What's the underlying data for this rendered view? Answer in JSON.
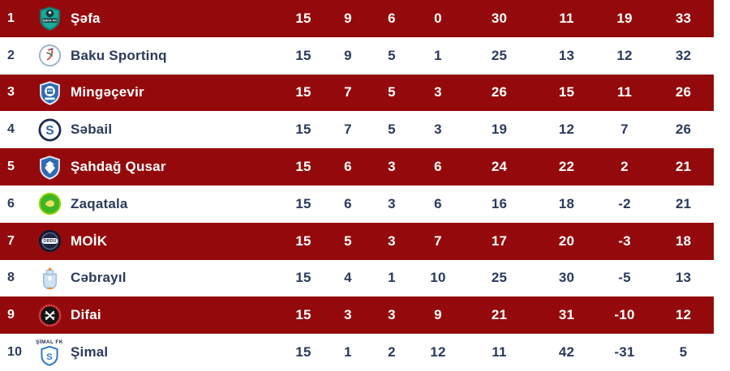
{
  "colors": {
    "row_highlight": "#940a0c",
    "row_default": "#ffffff",
    "text_on_highlight": "#ffffff",
    "text_default": "#2b3a5c"
  },
  "table": {
    "rows": [
      {
        "pos": "1",
        "team": "Şəfa",
        "highlighted": true,
        "stats": [
          "15",
          "9",
          "6",
          "0",
          "30",
          "11",
          "19",
          "33"
        ],
        "logo": {
          "shape": "shield",
          "color": "#1ba99a",
          "border": "#0e7f74",
          "glyph": "ball",
          "glyphColor": "#173f3d",
          "bandColor": "#14413e",
          "bandText": "ŞƏFA FK"
        }
      },
      {
        "pos": "2",
        "team": "Baku Sportinq",
        "highlighted": false,
        "stats": [
          "15",
          "9",
          "5",
          "1",
          "25",
          "13",
          "12",
          "32"
        ],
        "logo": {
          "shape": "circle",
          "color": "#ffffff",
          "border": "#9db4cc",
          "glyph": "figure",
          "glyphColor": "#d04a4a",
          "accent": "#3a7d44"
        }
      },
      {
        "pos": "3",
        "team": "Mingəçevir",
        "highlighted": true,
        "stats": [
          "15",
          "7",
          "5",
          "3",
          "26",
          "15",
          "11",
          "26"
        ],
        "logo": {
          "shape": "shield",
          "color": "#2f6db2",
          "border": "#e4ecf5",
          "glyph": "building",
          "glyphColor": "#ffffff"
        }
      },
      {
        "pos": "4",
        "team": "Səbail",
        "highlighted": false,
        "stats": [
          "15",
          "7",
          "5",
          "3",
          "19",
          "12",
          "7",
          "26"
        ],
        "logo": {
          "shape": "circle",
          "color": "#ffffff",
          "border": "#1d2b4d",
          "ring": 3,
          "glyph": "letter",
          "text": "S",
          "glyphColor": "#2e66a8"
        }
      },
      {
        "pos": "5",
        "team": "Şahdağ Qusar",
        "highlighted": true,
        "stats": [
          "15",
          "6",
          "3",
          "6",
          "24",
          "22",
          "2",
          "21"
        ],
        "logo": {
          "shape": "shield",
          "color": "#2f6bb3",
          "border": "#dfe8f2",
          "glyph": "eagle",
          "glyphColor": "#ffffff"
        }
      },
      {
        "pos": "6",
        "team": "Zaqatala",
        "highlighted": false,
        "stats": [
          "15",
          "6",
          "3",
          "6",
          "16",
          "18",
          "-2",
          "21"
        ],
        "logo": {
          "shape": "circle",
          "color": "#3cb527",
          "border": "#8fd400",
          "glyph": "blob",
          "glyphColor": "#e9e060"
        }
      },
      {
        "pos": "7",
        "team": "MOİK",
        "highlighted": true,
        "stats": [
          "15",
          "5",
          "3",
          "7",
          "17",
          "20",
          "-3",
          "18"
        ],
        "logo": {
          "shape": "circle",
          "color": "#1c2544",
          "border": "#10172d",
          "glyph": "band-text",
          "text": "ORDU",
          "textColor": "#1c2544"
        }
      },
      {
        "pos": "8",
        "team": "Cəbrayıl",
        "highlighted": false,
        "stats": [
          "15",
          "4",
          "1",
          "10",
          "25",
          "30",
          "-5",
          "13"
        ],
        "logo": {
          "shape": "emblem",
          "color": "#cfe2f2",
          "border": "#8fb3d6",
          "glyph": "castle",
          "glyphColor": "#ffffff",
          "accent": "#e8923a"
        }
      },
      {
        "pos": "9",
        "team": "Difai",
        "highlighted": true,
        "stats": [
          "15",
          "3",
          "3",
          "9",
          "21",
          "31",
          "-10",
          "12"
        ],
        "logo": {
          "shape": "circle",
          "color": "#141414",
          "border": "#c3242b",
          "ring": 3.2,
          "glyph": "swords",
          "glyphColor": "#ffffff"
        }
      },
      {
        "pos": "10",
        "team": "Şimal",
        "highlighted": false,
        "stats": [
          "15",
          "1",
          "2",
          "12",
          "11",
          "42",
          "-31",
          "5"
        ],
        "logo": {
          "shape": "shield-outline",
          "color": "#ffffff",
          "border": "#2f78c2",
          "glyph": "letter",
          "text": "S",
          "glyphColor": "#2f78c2",
          "label": "ŞİMAL FK",
          "labelColor": "#1d2b4d"
        }
      }
    ]
  }
}
